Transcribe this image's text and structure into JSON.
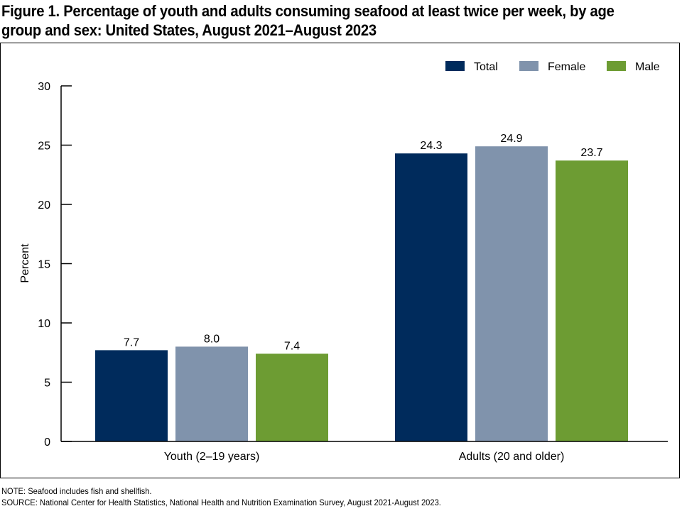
{
  "chart_data": {
    "type": "bar",
    "title_lines": [
      "Figure 1. Percentage of youth and adults consuming seafood at least twice per week, by age",
      "group and sex: United States, August 2021–August 2023"
    ],
    "xlabel": "",
    "ylabel": "Percent",
    "ylim": [
      0,
      30
    ],
    "yticks": [
      "0",
      "5",
      "10",
      "15",
      "20",
      "25",
      "30"
    ],
    "categories": [
      "Youth (2–19 years)",
      "Adults (20 and older)"
    ],
    "series": [
      {
        "name": "Total",
        "color": "#002b5c",
        "values": [
          7.7,
          24.3
        ],
        "labels": [
          "7.7",
          "24.3"
        ]
      },
      {
        "name": "Female",
        "color": "#8093ac",
        "values": [
          8.0,
          24.9
        ],
        "labels": [
          "8.0",
          "24.9"
        ]
      },
      {
        "name": "Male",
        "color": "#6d9c33",
        "values": [
          7.4,
          23.7
        ],
        "labels": [
          "7.4",
          "23.7"
        ]
      }
    ],
    "legend_position": "top-right",
    "grid": false
  },
  "footnotes": {
    "note": "NOTE: Seafood includes fish and shellfish.",
    "source": "SOURCE: National Center for Health Statistics, National Health and Nutrition Examination Survey, August 2021-August 2023."
  }
}
